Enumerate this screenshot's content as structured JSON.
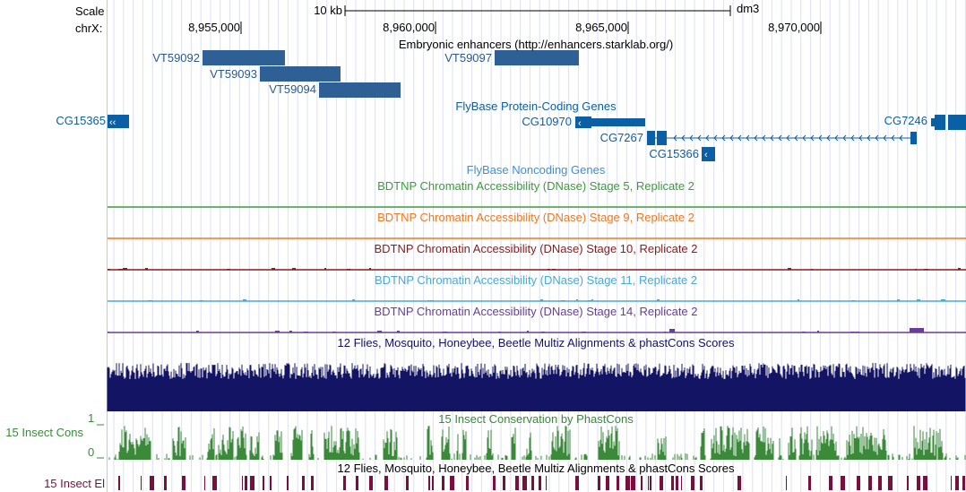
{
  "header": {
    "scale_label": "Scale",
    "chrom_label": "chrX:",
    "scale_bar_label": "10 kb",
    "assembly": "dm3",
    "ticks": [
      "8,955,000",
      "8,960,000",
      "8,965,000",
      "8,970,000"
    ]
  },
  "tracks": {
    "enhancers": {
      "title": "Embryonic enhancers (http://enhancers.starklab.org/)",
      "items": [
        "VT59092",
        "VT59093",
        "VT59094",
        "VT59097"
      ],
      "color": "#2e6096"
    },
    "genes": {
      "title": "FlyBase Protein-Coding Genes",
      "items": [
        "CG15365",
        "CG10970",
        "CG7267",
        "CG15366",
        "CG7246"
      ],
      "color": "#0b5fa5"
    },
    "noncoding": {
      "title": "FlyBase Noncoding Genes",
      "color": "#3f8fd2"
    },
    "dnase": [
      {
        "title": "BDTNP Chromatin Accessibility (DNase) Stage 5, Replicate 2",
        "color": "#3c9b3c"
      },
      {
        "title": "BDTNP Chromatin Accessibility (DNase) Stage 9, Replicate 2",
        "color": "#f0781e"
      },
      {
        "title": "BDTNP Chromatin Accessibility (DNase) Stage 10, Replicate 2",
        "color": "#8b1a1a"
      },
      {
        "title": "BDTNP Chromatin Accessibility (DNase) Stage 11, Replicate 2",
        "color": "#4aa8d8"
      },
      {
        "title": "BDTNP Chromatin Accessibility (DNase) Stage 14, Replicate 2",
        "color": "#6a3d9a"
      }
    ],
    "multiz": {
      "title": "12 Flies, Mosquito, Honeybee, Beetle Multiz Alignments & phastCons Scores",
      "color": "#141464"
    },
    "phastcons": {
      "title": "15 Insect Conservation by PhastCons",
      "side_label": "15 Insect Cons",
      "axis_max": "1",
      "axis_min": "0",
      "color": "#3a8a3a"
    },
    "elements": {
      "title": "12 Flies, Mosquito, Honeybee, Beetle Multiz Alignments & phastCons Scores",
      "side_label": "15 Insect El",
      "color": "#7a0f3c"
    }
  }
}
